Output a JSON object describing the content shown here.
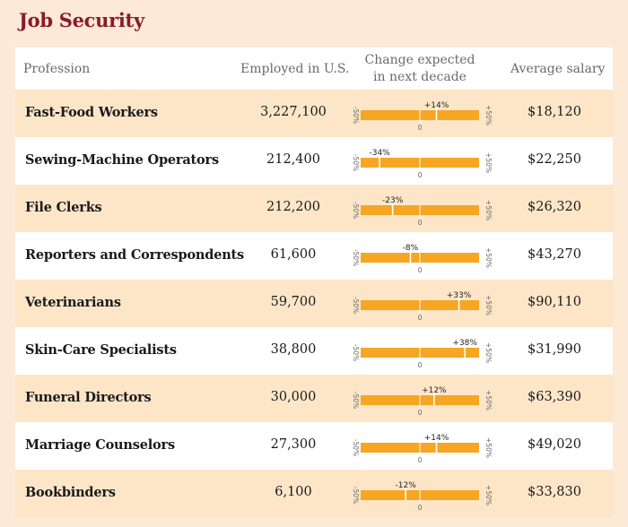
{
  "title": "Job Security",
  "columns": {
    "profession": "Profession",
    "employed": "Employed in U.S.",
    "change_line1": "Change expected",
    "change_line2": "in next decade",
    "salary": "Average salary"
  },
  "colors": {
    "title": "#8b1a2b",
    "bar": "#f6a623",
    "row_alt": "#fde6c8"
  },
  "scale_labels": {
    "min": "-50%",
    "max": "+50%",
    "zero": "0"
  },
  "chart_data": {
    "type": "table",
    "title": "Job Security",
    "headers": [
      "Profession",
      "Employed in U.S.",
      "Change expected in next decade",
      "Average salary"
    ],
    "change_range": [
      -50,
      50
    ],
    "rows": [
      {
        "profession": "Fast-Food Workers",
        "employed": "3,227,100",
        "change": 14,
        "change_label": "+14%",
        "salary": "$18,120"
      },
      {
        "profession": "Sewing-Machine Operators",
        "employed": "212,400",
        "change": -34,
        "change_label": "-34%",
        "salary": "$22,250"
      },
      {
        "profession": "File Clerks",
        "employed": "212,200",
        "change": -23,
        "change_label": "-23%",
        "salary": "$26,320"
      },
      {
        "profession": "Reporters and Correspondents",
        "employed": "61,600",
        "change": -8,
        "change_label": "-8%",
        "salary": "$43,270"
      },
      {
        "profession": "Veterinarians",
        "employed": "59,700",
        "change": 33,
        "change_label": "+33%",
        "salary": "$90,110"
      },
      {
        "profession": "Skin-Care Specialists",
        "employed": "38,800",
        "change": 38,
        "change_label": "+38%",
        "salary": "$31,990"
      },
      {
        "profession": "Funeral Directors",
        "employed": "30,000",
        "change": 12,
        "change_label": "+12%",
        "salary": "$63,390"
      },
      {
        "profession": "Marriage Counselors",
        "employed": "27,300",
        "change": 14,
        "change_label": "+14%",
        "salary": "$49,020"
      },
      {
        "profession": "Bookbinders",
        "employed": "6,100",
        "change": -12,
        "change_label": "-12%",
        "salary": "$33,830"
      }
    ]
  }
}
